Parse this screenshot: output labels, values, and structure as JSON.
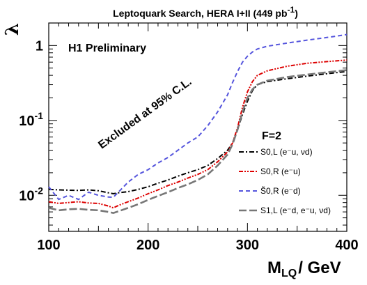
{
  "chart_data": {
    "type": "line",
    "title": "Leptoquark Search, HERA I+II (449 pb",
    "title_sup": "-1",
    "title_end": ")",
    "xlabel": "M",
    "xlabel_sub": "LQ",
    "xlabel_unit": "/ GeV",
    "ylabel": "λ",
    "xlim": [
      100,
      400
    ],
    "ylim": [
      0.0033,
      2.0
    ],
    "yscale": "log",
    "x_ticks": [
      "100",
      "200",
      "300",
      "400"
    ],
    "y_ticks": [
      {
        "base": "10",
        "exp": "-2",
        "value": 0.01
      },
      {
        "base": "10",
        "exp": "-1",
        "value": 0.1
      },
      {
        "base": "1",
        "exp": "",
        "value": 1
      }
    ],
    "annotations": {
      "experiment": "H1 Preliminary",
      "excluded": "Excluded at 95% C.L."
    },
    "legend": {
      "title": "F=2",
      "position": "right-center",
      "entries": [
        "S0,L (e⁻u, νd)",
        "S0,R (e⁻u)",
        "S̃0,R (e⁻d)",
        "S1,L (e⁻d, e⁻u, νd)"
      ]
    },
    "series": [
      {
        "name": "S0,L (e⁻u, νd)",
        "color": "#000000",
        "dash": "dashdot",
        "x": [
          100,
          110,
          120,
          130,
          140,
          150,
          160,
          165,
          170,
          180,
          190,
          200,
          210,
          220,
          230,
          240,
          250,
          260,
          270,
          280,
          285,
          290,
          295,
          300,
          305,
          310,
          320,
          340,
          360,
          380,
          400
        ],
        "y": [
          0.012,
          0.0118,
          0.0117,
          0.0116,
          0.0118,
          0.0115,
          0.0108,
          0.0105,
          0.0108,
          0.0112,
          0.012,
          0.013,
          0.0145,
          0.016,
          0.018,
          0.02,
          0.022,
          0.025,
          0.031,
          0.04,
          0.05,
          0.075,
          0.12,
          0.18,
          0.25,
          0.3,
          0.33,
          0.36,
          0.39,
          0.42,
          0.45
        ]
      },
      {
        "name": "S0,R (e⁻u)",
        "color": "#dd0000",
        "dash": "dashdotdot",
        "x": [
          100,
          110,
          120,
          130,
          140,
          150,
          160,
          165,
          170,
          180,
          190,
          200,
          210,
          220,
          230,
          240,
          250,
          260,
          270,
          280,
          285,
          290,
          295,
          300,
          305,
          310,
          320,
          340,
          360,
          380,
          400
        ],
        "y": [
          0.0082,
          0.0078,
          0.008,
          0.0082,
          0.0079,
          0.0078,
          0.0072,
          0.0068,
          0.0073,
          0.0082,
          0.0092,
          0.0105,
          0.0118,
          0.0135,
          0.015,
          0.017,
          0.019,
          0.022,
          0.028,
          0.038,
          0.05,
          0.08,
          0.15,
          0.24,
          0.33,
          0.4,
          0.46,
          0.53,
          0.58,
          0.61,
          0.64
        ]
      },
      {
        "name": "S̃0,R (e⁻d)",
        "color": "#5555dd",
        "dash": "dashed",
        "x": [
          100,
          110,
          120,
          130,
          140,
          150,
          160,
          165,
          170,
          180,
          190,
          200,
          210,
          220,
          230,
          240,
          250,
          260,
          270,
          280,
          285,
          290,
          295,
          300,
          305,
          310,
          320,
          340,
          360,
          380,
          400
        ],
        "y": [
          0.013,
          0.0088,
          0.01,
          0.0088,
          0.011,
          0.01,
          0.0095,
          0.0094,
          0.011,
          0.015,
          0.019,
          0.022,
          0.027,
          0.032,
          0.04,
          0.05,
          0.06,
          0.085,
          0.13,
          0.22,
          0.32,
          0.45,
          0.6,
          0.72,
          0.82,
          0.9,
          0.98,
          1.08,
          1.18,
          1.28,
          1.4
        ]
      },
      {
        "name": "S1,L (e⁻d, e⁻u, νd)",
        "color": "#777777",
        "dash": "longdash",
        "x": [
          100,
          110,
          120,
          130,
          140,
          150,
          160,
          165,
          170,
          180,
          190,
          200,
          210,
          220,
          230,
          240,
          250,
          260,
          270,
          280,
          285,
          290,
          295,
          300,
          305,
          310,
          320,
          340,
          360,
          380,
          400
        ],
        "y": [
          0.0068,
          0.0063,
          0.0065,
          0.0066,
          0.0064,
          0.0063,
          0.006,
          0.0058,
          0.0061,
          0.0068,
          0.0076,
          0.0087,
          0.0098,
          0.011,
          0.0125,
          0.014,
          0.016,
          0.019,
          0.025,
          0.035,
          0.048,
          0.075,
          0.13,
          0.2,
          0.26,
          0.3,
          0.34,
          0.38,
          0.41,
          0.44,
          0.47
        ]
      }
    ]
  }
}
